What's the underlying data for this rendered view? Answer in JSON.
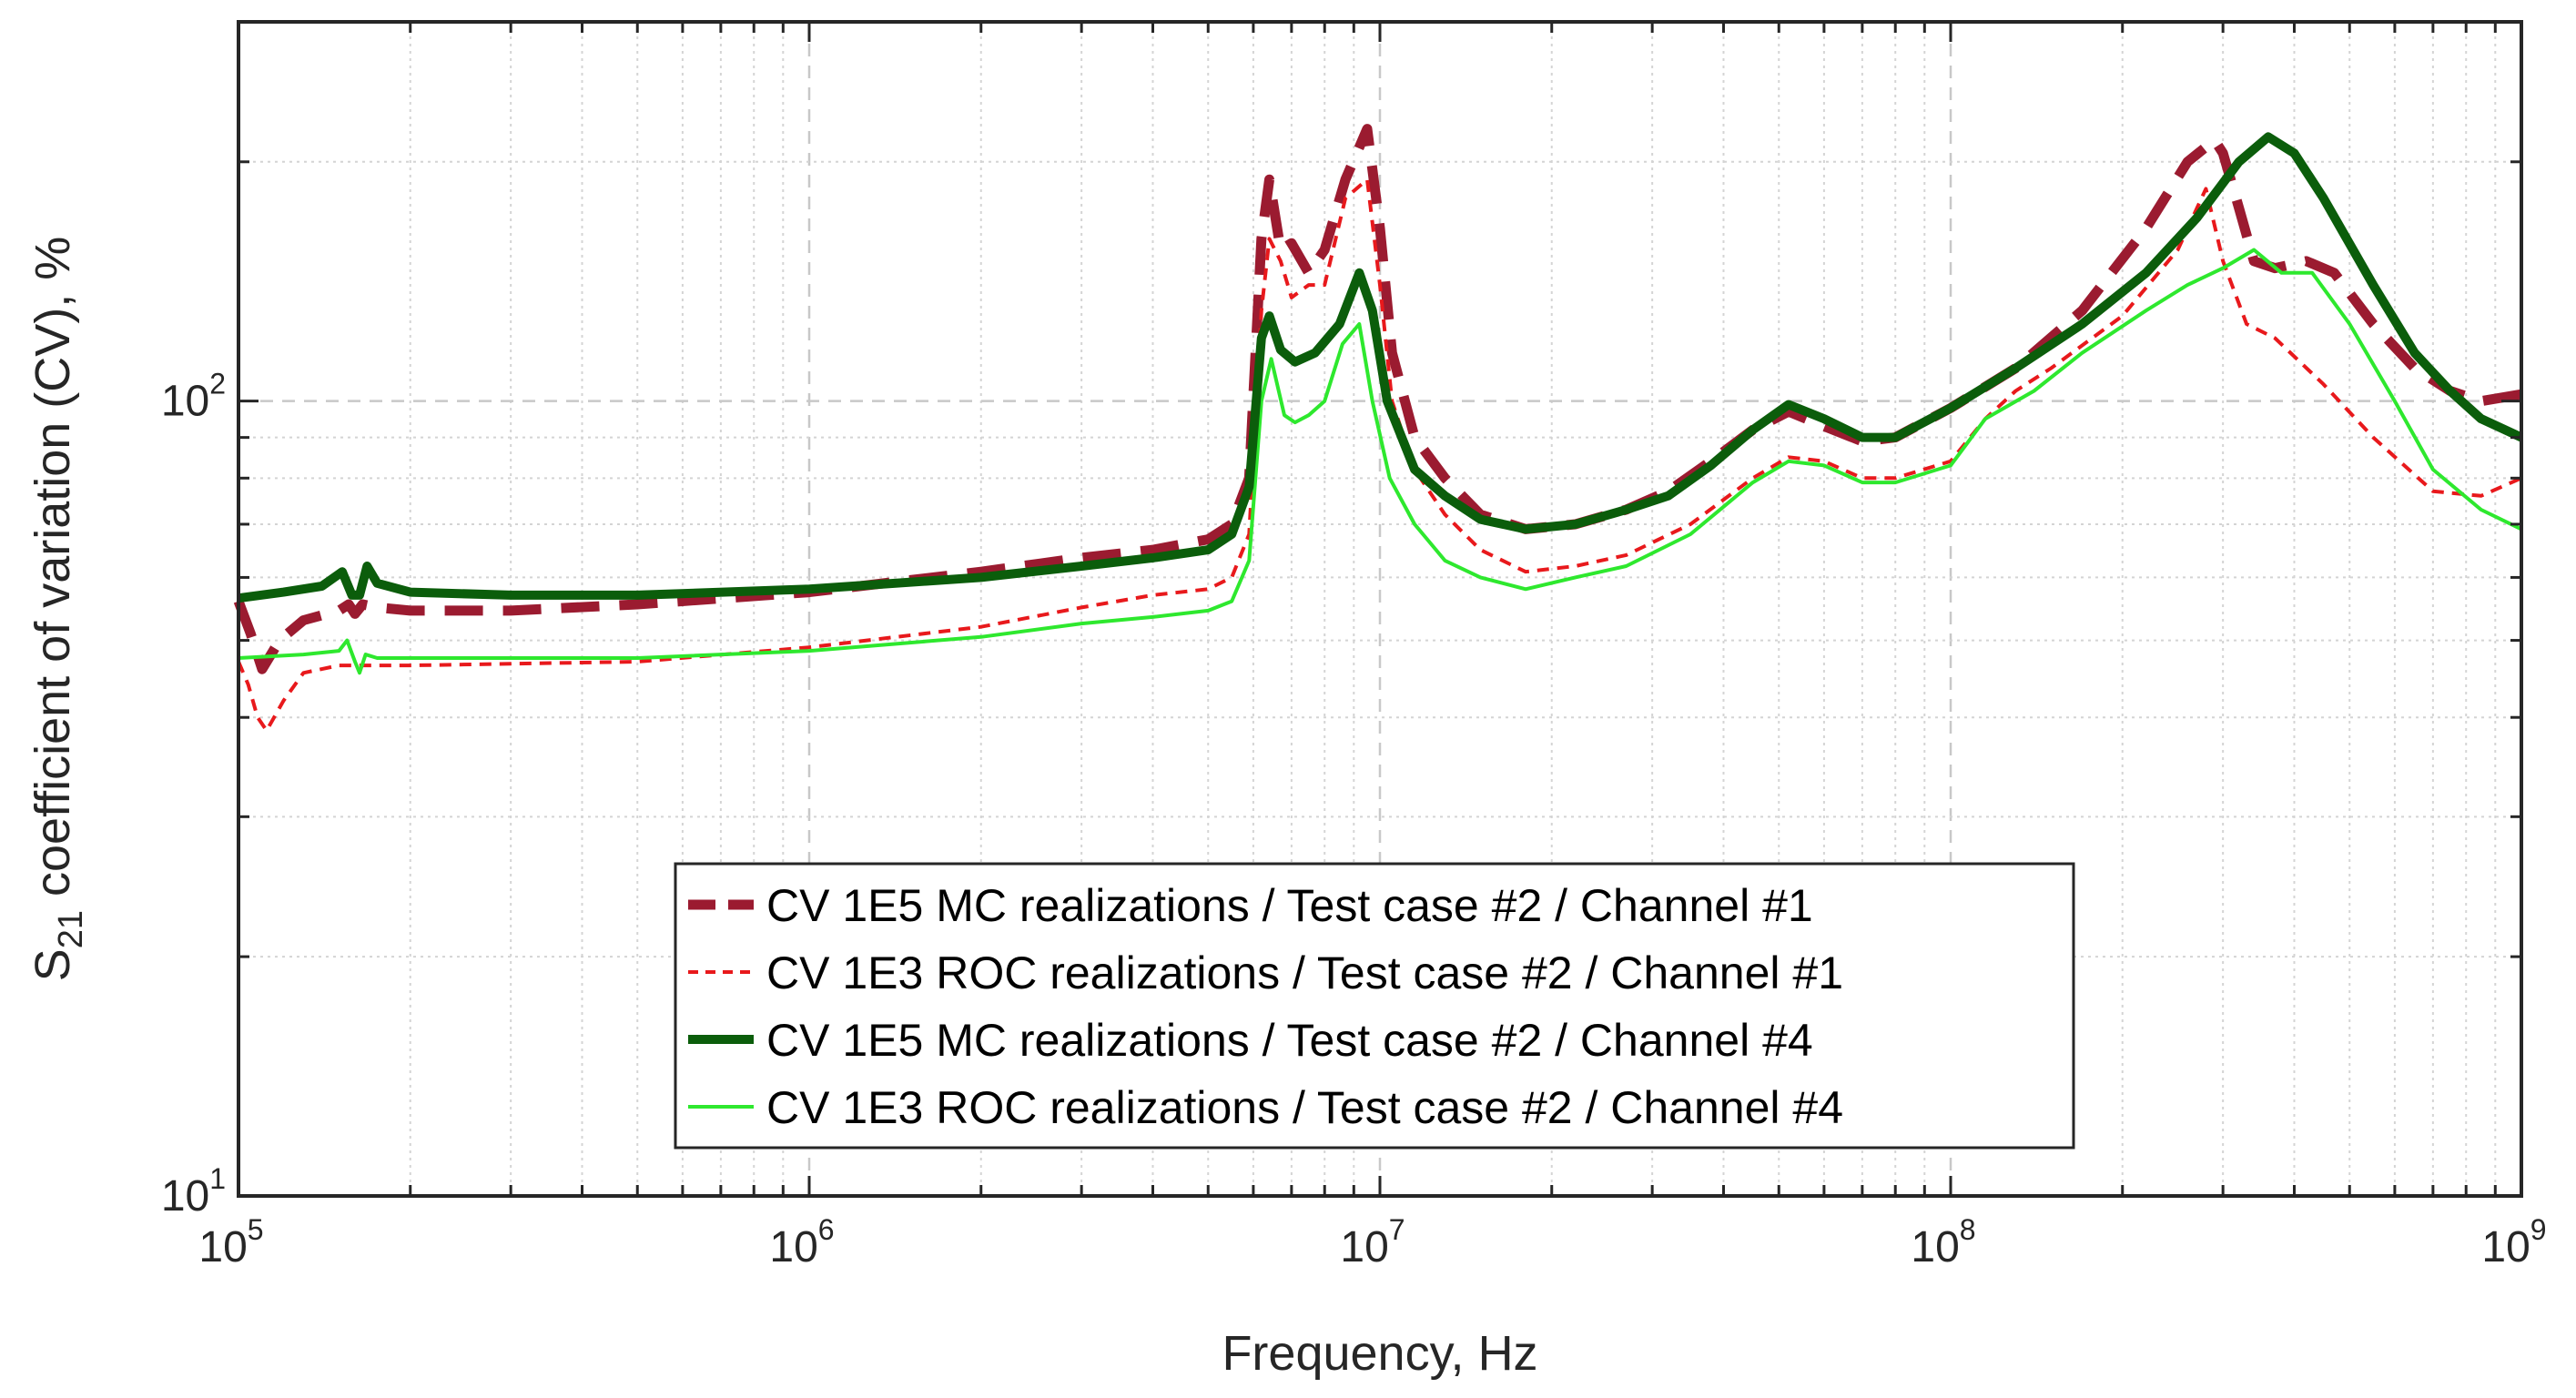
{
  "chart_data": {
    "type": "line",
    "xlabel": "Frequency, Hz",
    "ylabel_main": "S",
    "ylabel_sub": "21",
    "ylabel_rest": " coefficient of variation (CV), %",
    "x_scale": "log",
    "y_scale": "log",
    "xlim": [
      100000,
      1000000000
    ],
    "ylim": [
      10,
      300
    ],
    "x_ticks": [
      {
        "value": 100000,
        "base": "10",
        "exp": "5"
      },
      {
        "value": 1000000,
        "base": "10",
        "exp": "6"
      },
      {
        "value": 10000000,
        "base": "10",
        "exp": "7"
      },
      {
        "value": 100000000,
        "base": "10",
        "exp": "8"
      },
      {
        "value": 1000000000,
        "base": "10",
        "exp": "9"
      }
    ],
    "y_ticks": [
      {
        "value": 10,
        "base": "10",
        "exp": "1"
      },
      {
        "value": 100,
        "base": "10",
        "exp": "2"
      }
    ],
    "grid": true,
    "legend_position": "lower-center",
    "series": [
      {
        "name": "CV 1E5 MC realizations / Test case #2 / Channel #1",
        "color": "#9b1b30",
        "style": "dashed-thick",
        "points": [
          [
            100000,
            56
          ],
          [
            105000,
            51
          ],
          [
            110000,
            46
          ],
          [
            118000,
            50
          ],
          [
            130000,
            53
          ],
          [
            150000,
            54.5
          ],
          [
            156000,
            55.5
          ],
          [
            160000,
            54
          ],
          [
            165000,
            55.5
          ],
          [
            175000,
            55
          ],
          [
            200000,
            54.5
          ],
          [
            300000,
            54.5
          ],
          [
            500000,
            55.5
          ],
          [
            1000000,
            57.5
          ],
          [
            2000000,
            61
          ],
          [
            3000000,
            63.5
          ],
          [
            4000000,
            65
          ],
          [
            5000000,
            67
          ],
          [
            5500000,
            70
          ],
          [
            5900000,
            80
          ],
          [
            6200000,
            160
          ],
          [
            6400000,
            190
          ],
          [
            6700000,
            155
          ],
          [
            7000000,
            158
          ],
          [
            7500000,
            145
          ],
          [
            8000000,
            155
          ],
          [
            8700000,
            190
          ],
          [
            9500000,
            220
          ],
          [
            10000000,
            165
          ],
          [
            10500000,
            115
          ],
          [
            11500000,
            90
          ],
          [
            13000000,
            80
          ],
          [
            15000000,
            72
          ],
          [
            18000000,
            69
          ],
          [
            22000000,
            70
          ],
          [
            27000000,
            73
          ],
          [
            32000000,
            77
          ],
          [
            38000000,
            84
          ],
          [
            45000000,
            92
          ],
          [
            52000000,
            97
          ],
          [
            60000000,
            93
          ],
          [
            70000000,
            89
          ],
          [
            80000000,
            90
          ],
          [
            100000000,
            98
          ],
          [
            130000000,
            110
          ],
          [
            170000000,
            130
          ],
          [
            220000000,
            165
          ],
          [
            260000000,
            200
          ],
          [
            290000000,
            213
          ],
          [
            300000000,
            205
          ],
          [
            320000000,
            175
          ],
          [
            340000000,
            150
          ],
          [
            370000000,
            147
          ],
          [
            420000000,
            150
          ],
          [
            470000000,
            145
          ],
          [
            550000000,
            125
          ],
          [
            650000000,
            110
          ],
          [
            750000000,
            103
          ],
          [
            850000000,
            100
          ],
          [
            1000000000,
            102
          ]
        ]
      },
      {
        "name": "CV 1E3 ROC realizations / Test case #2 / Channel #1",
        "color": "#e8191c",
        "style": "dashed-thin",
        "points": [
          [
            100000,
            47
          ],
          [
            104000,
            44
          ],
          [
            108000,
            40
          ],
          [
            112000,
            38.5
          ],
          [
            120000,
            42
          ],
          [
            130000,
            45.5
          ],
          [
            150000,
            46.5
          ],
          [
            170000,
            46.5
          ],
          [
            200000,
            46.5
          ],
          [
            500000,
            47
          ],
          [
            1000000,
            49
          ],
          [
            2000000,
            52
          ],
          [
            3000000,
            55
          ],
          [
            4000000,
            57
          ],
          [
            5000000,
            58
          ],
          [
            5500000,
            60
          ],
          [
            5900000,
            68
          ],
          [
            6200000,
            130
          ],
          [
            6400000,
            160
          ],
          [
            6700000,
            150
          ],
          [
            7000000,
            135
          ],
          [
            7500000,
            140
          ],
          [
            8000000,
            140
          ],
          [
            8700000,
            180
          ],
          [
            9500000,
            190
          ],
          [
            10000000,
            140
          ],
          [
            10500000,
            100
          ],
          [
            11500000,
            82
          ],
          [
            13000000,
            72
          ],
          [
            15000000,
            65
          ],
          [
            18000000,
            61
          ],
          [
            22000000,
            62
          ],
          [
            27000000,
            64
          ],
          [
            35000000,
            70
          ],
          [
            45000000,
            80
          ],
          [
            52000000,
            85
          ],
          [
            60000000,
            84
          ],
          [
            70000000,
            80
          ],
          [
            80000000,
            80
          ],
          [
            100000000,
            84
          ],
          [
            115000000,
            95
          ],
          [
            130000000,
            103
          ],
          [
            150000000,
            110
          ],
          [
            200000000,
            128
          ],
          [
            250000000,
            155
          ],
          [
            280000000,
            185
          ],
          [
            300000000,
            150
          ],
          [
            330000000,
            125
          ],
          [
            370000000,
            120
          ],
          [
            450000000,
            105
          ],
          [
            550000000,
            90
          ],
          [
            700000000,
            77
          ],
          [
            850000000,
            76
          ],
          [
            1000000000,
            80
          ]
        ]
      },
      {
        "name": "CV 1E5 MC realizations / Test case #2 / Channel #4",
        "color": "#0b5d0b",
        "style": "solid-thick",
        "points": [
          [
            100000,
            56.5
          ],
          [
            120000,
            57.5
          ],
          [
            140000,
            58.5
          ],
          [
            152000,
            61
          ],
          [
            158000,
            57
          ],
          [
            163000,
            57
          ],
          [
            168000,
            62
          ],
          [
            175000,
            59
          ],
          [
            200000,
            57.5
          ],
          [
            300000,
            57
          ],
          [
            500000,
            57
          ],
          [
            1000000,
            58
          ],
          [
            2000000,
            60
          ],
          [
            3000000,
            62
          ],
          [
            4000000,
            63.5
          ],
          [
            5000000,
            65
          ],
          [
            5500000,
            68
          ],
          [
            5900000,
            78
          ],
          [
            6200000,
            120
          ],
          [
            6400000,
            128
          ],
          [
            6700000,
            116
          ],
          [
            7100000,
            112
          ],
          [
            7700000,
            115
          ],
          [
            8500000,
            125
          ],
          [
            9200000,
            145
          ],
          [
            9700000,
            130
          ],
          [
            10300000,
            100
          ],
          [
            11500000,
            82
          ],
          [
            13000000,
            76
          ],
          [
            15000000,
            71
          ],
          [
            18000000,
            69
          ],
          [
            22000000,
            70
          ],
          [
            27000000,
            73
          ],
          [
            32000000,
            76
          ],
          [
            38000000,
            83
          ],
          [
            45000000,
            92
          ],
          [
            52000000,
            99
          ],
          [
            60000000,
            95
          ],
          [
            70000000,
            90
          ],
          [
            80000000,
            90
          ],
          [
            100000000,
            98
          ],
          [
            130000000,
            110
          ],
          [
            170000000,
            125
          ],
          [
            220000000,
            145
          ],
          [
            270000000,
            170
          ],
          [
            320000000,
            200
          ],
          [
            360000000,
            215
          ],
          [
            400000000,
            205
          ],
          [
            450000000,
            180
          ],
          [
            550000000,
            140
          ],
          [
            650000000,
            115
          ],
          [
            750000000,
            103
          ],
          [
            850000000,
            95
          ],
          [
            1000000000,
            90
          ]
        ]
      },
      {
        "name": "CV 1E3 ROC realizations / Test case #2 / Channel #4",
        "color": "#2ee82e",
        "style": "solid-thin",
        "points": [
          [
            100000,
            47.5
          ],
          [
            130000,
            48
          ],
          [
            150000,
            48.5
          ],
          [
            155000,
            50
          ],
          [
            160000,
            47
          ],
          [
            163000,
            45.5
          ],
          [
            167000,
            48
          ],
          [
            175000,
            47.5
          ],
          [
            200000,
            47.5
          ],
          [
            500000,
            47.5
          ],
          [
            1000000,
            48.5
          ],
          [
            2000000,
            50.5
          ],
          [
            3000000,
            52.5
          ],
          [
            4000000,
            53.5
          ],
          [
            5000000,
            54.5
          ],
          [
            5500000,
            56
          ],
          [
            5900000,
            63
          ],
          [
            6200000,
            100
          ],
          [
            6450000,
            113
          ],
          [
            6800000,
            96
          ],
          [
            7100000,
            94
          ],
          [
            7500000,
            96
          ],
          [
            8000000,
            100
          ],
          [
            8600000,
            118
          ],
          [
            9200000,
            125
          ],
          [
            9700000,
            100
          ],
          [
            10400000,
            80
          ],
          [
            11500000,
            70
          ],
          [
            13000000,
            63
          ],
          [
            15000000,
            60
          ],
          [
            18000000,
            58
          ],
          [
            22000000,
            60
          ],
          [
            27000000,
            62
          ],
          [
            35000000,
            68
          ],
          [
            45000000,
            79
          ],
          [
            52000000,
            84
          ],
          [
            60000000,
            83
          ],
          [
            70000000,
            79
          ],
          [
            80000000,
            79
          ],
          [
            100000000,
            83
          ],
          [
            115000000,
            95
          ],
          [
            140000000,
            103
          ],
          [
            170000000,
            115
          ],
          [
            220000000,
            130
          ],
          [
            260000000,
            140
          ],
          [
            300000000,
            147
          ],
          [
            340000000,
            155
          ],
          [
            380000000,
            145
          ],
          [
            430000000,
            145
          ],
          [
            500000000,
            125
          ],
          [
            600000000,
            100
          ],
          [
            700000000,
            82
          ],
          [
            850000000,
            73
          ],
          [
            1000000000,
            69
          ]
        ]
      }
    ]
  }
}
